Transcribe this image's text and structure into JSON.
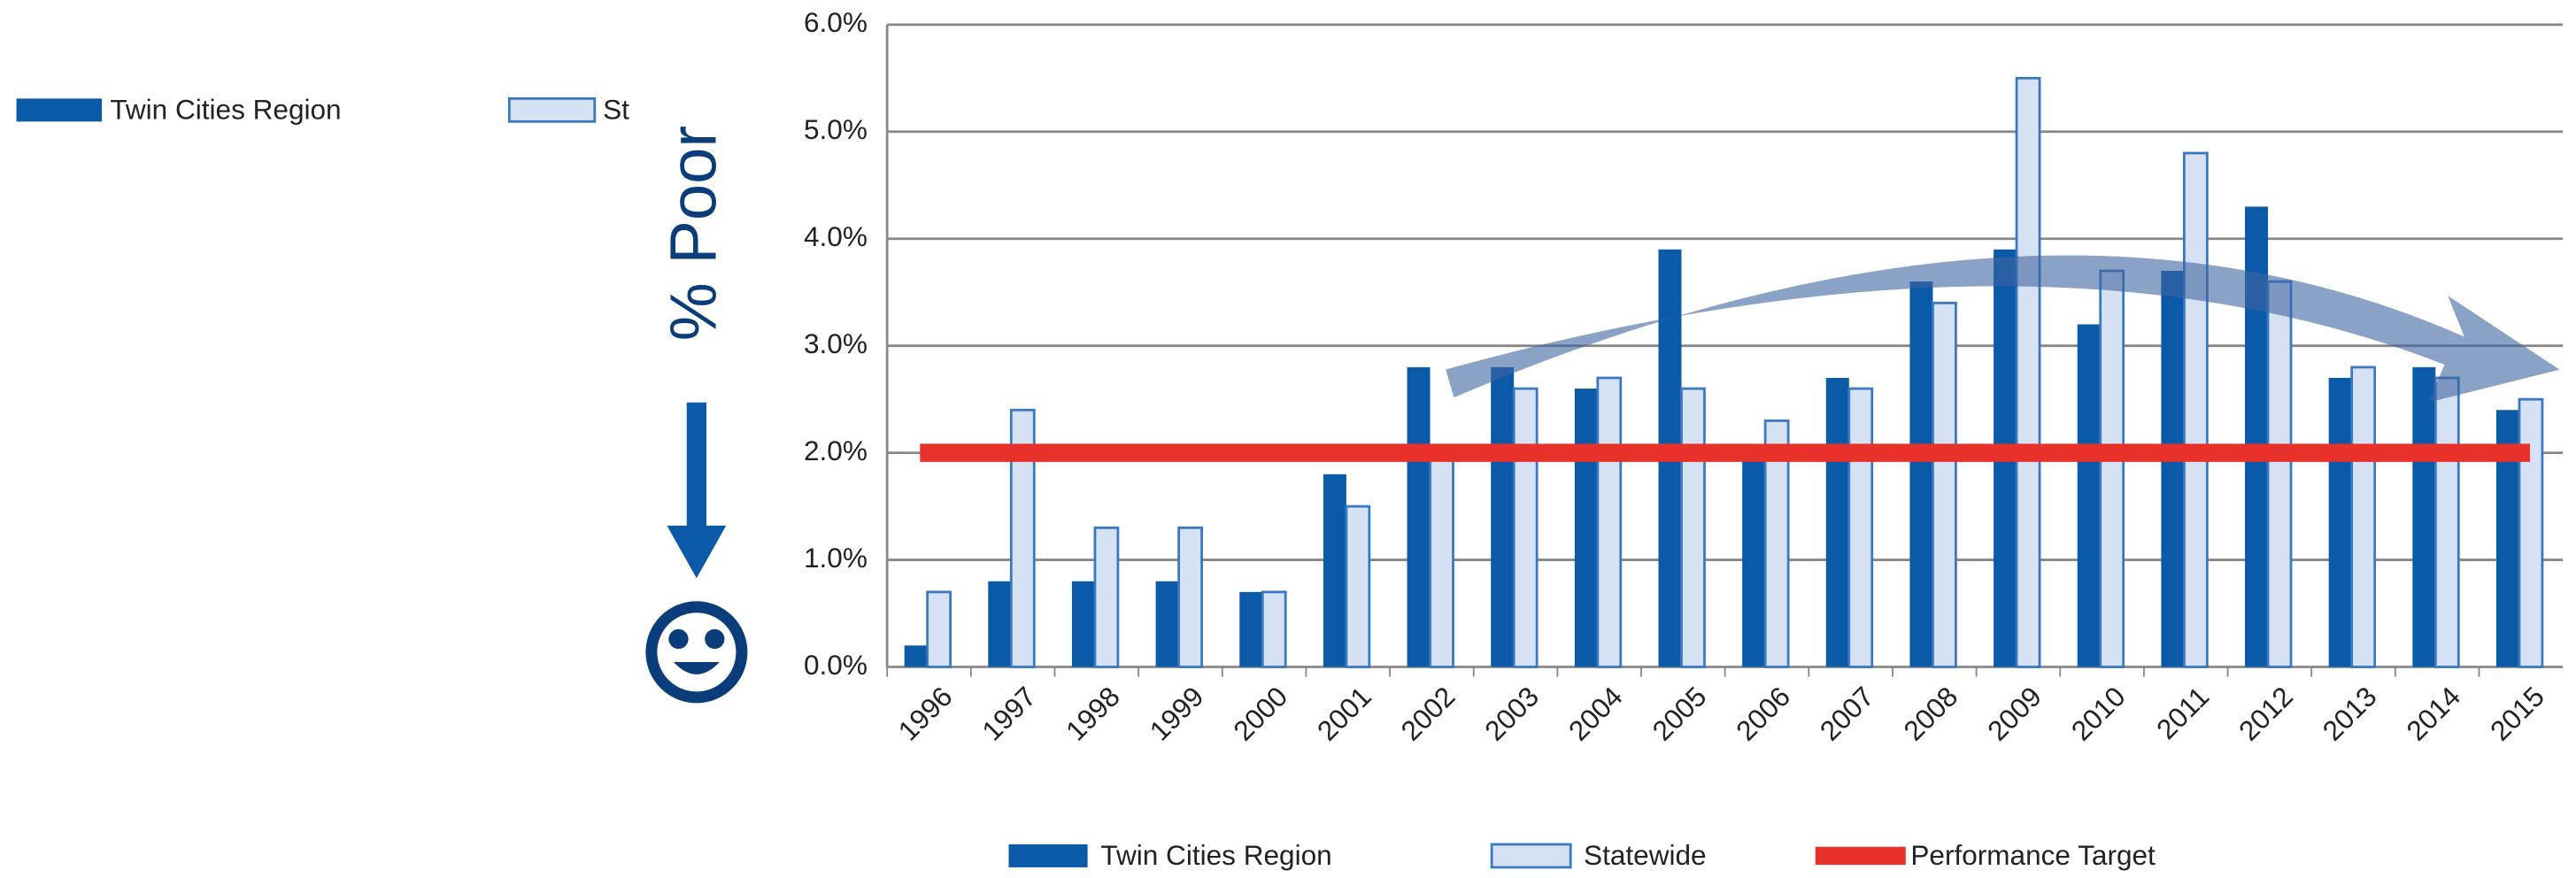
{
  "chart_data": {
    "type": "bar",
    "y_label": "% Poor",
    "categories": [
      "1996",
      "1997",
      "1998",
      "1999",
      "2000",
      "2001",
      "2002",
      "2003",
      "2004",
      "2005",
      "2006",
      "2007",
      "2008",
      "2009",
      "2010",
      "2011",
      "2012",
      "2013",
      "2014",
      "2015"
    ],
    "series": [
      {
        "name": "Twin Cities Region",
        "color": "#0a5aa8",
        "values": [
          0.2,
          0.8,
          0.8,
          0.8,
          0.7,
          1.8,
          2.8,
          2.8,
          2.6,
          3.9,
          2.0,
          2.7,
          3.6,
          3.9,
          3.2,
          3.7,
          4.3,
          2.7,
          2.8,
          2.4
        ]
      },
      {
        "name": "Statewide",
        "color": "#d6e2f3",
        "values": [
          0.7,
          2.4,
          1.3,
          1.3,
          0.7,
          1.5,
          2.0,
          2.6,
          2.7,
          2.6,
          2.3,
          2.6,
          3.4,
          5.5,
          3.7,
          4.8,
          3.6,
          2.8,
          2.7,
          2.5
        ]
      }
    ],
    "target": {
      "name": "Performance Target",
      "value": 2.0,
      "color": "#e8312a"
    },
    "ylim": [
      0,
      6
    ],
    "yticks": [
      {
        "value": 0,
        "label": "0.0%"
      },
      {
        "value": 1,
        "label": "1.0%"
      },
      {
        "value": 2,
        "label": "2.0%"
      },
      {
        "value": 3,
        "label": "3.0%"
      },
      {
        "value": 4,
        "label": "4.0%"
      },
      {
        "value": 5,
        "label": "5.0%"
      },
      {
        "value": 6,
        "label": "6.0%"
      }
    ],
    "grid": true,
    "clipped_legend": [
      "Twin Cities Region",
      "St"
    ]
  }
}
